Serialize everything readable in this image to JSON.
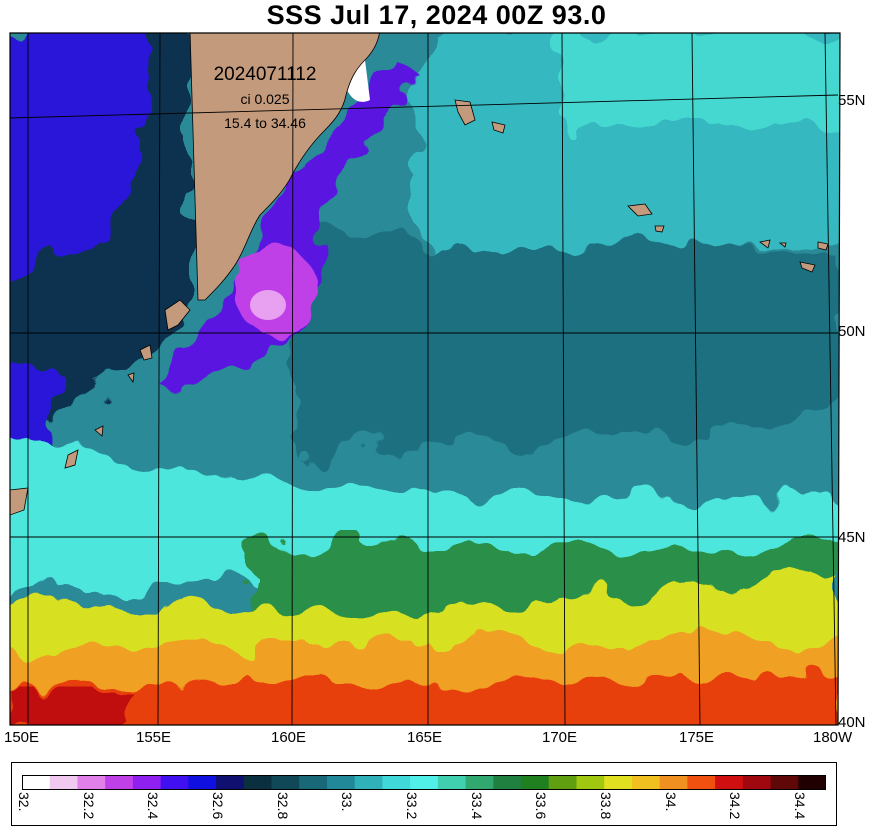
{
  "title": "SSS Jul 17, 2024 00Z 93.0",
  "annotations": {
    "date_code": "2024071112",
    "contour_interval": "ci 0.025",
    "range": "15.4 to 34.46"
  },
  "map": {
    "region": "NW Pacific / Kamchatka / Kuril Islands",
    "lon_range": [
      150,
      180
    ],
    "lat_range": [
      40,
      56.5
    ],
    "lon_labels": [
      "150E",
      "155E",
      "160E",
      "165E",
      "170E",
      "175E",
      "180W"
    ],
    "lat_labels": [
      "55N",
      "50N",
      "45N",
      "40N"
    ],
    "land_color": "#c49a7c"
  },
  "colorbar": {
    "labels": [
      "32.",
      "32.2",
      "32.4",
      "32.6",
      "32.8",
      "33.",
      "33.2",
      "33.4",
      "33.6",
      "33.8",
      "34.",
      "34.2",
      "34.4"
    ],
    "colors": [
      "#ffffff",
      "#f0c8f0",
      "#e080e8",
      "#c040e8",
      "#9020f0",
      "#4010f0",
      "#1010e0",
      "#101070",
      "#0a3040",
      "#104858",
      "#186878",
      "#208898",
      "#30b0b8",
      "#40d8d8",
      "#50f0e8",
      "#40d0b0",
      "#30a870",
      "#208040",
      "#208020",
      "#60a010",
      "#a0c810",
      "#e0e020",
      "#f0c020",
      "#f09020",
      "#f05010",
      "#d01010",
      "#a00810",
      "#600808",
      "#200000"
    ]
  }
}
